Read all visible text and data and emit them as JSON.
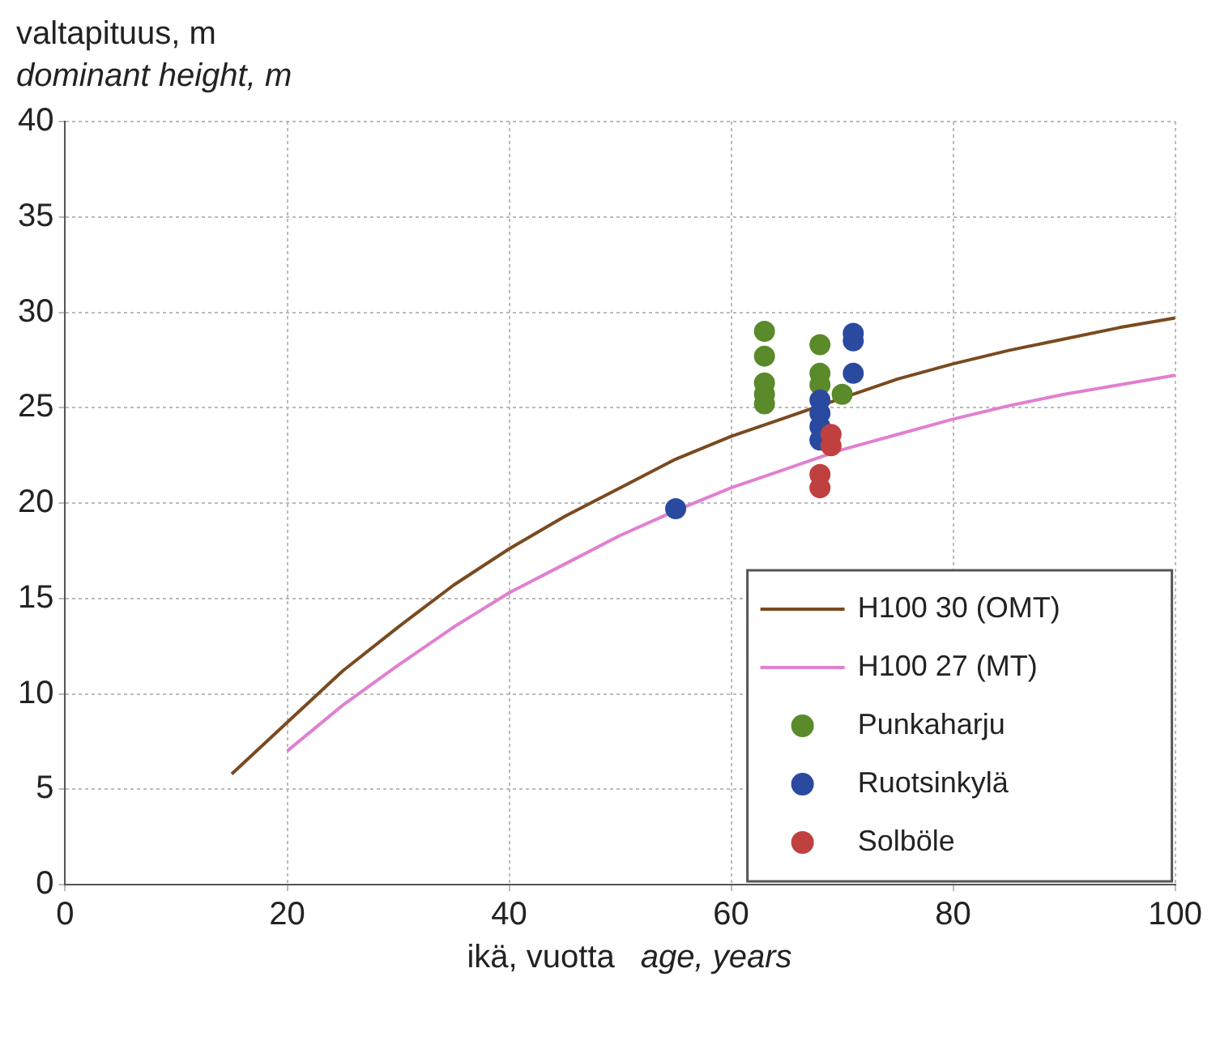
{
  "chart_data": {
    "type": "scatter",
    "xlabel": "ikä, vuotta\nage, years",
    "ylabel": "valtapituus, m\ndominant height, m",
    "xlim": [
      0,
      100
    ],
    "xticks": [
      0,
      20,
      40,
      60,
      80,
      100
    ],
    "ylim": [
      0,
      40
    ],
    "yticks": [
      0,
      5,
      10,
      15,
      20,
      25,
      30,
      35,
      40
    ],
    "grid": true,
    "legend": "bottom right",
    "marker": "circle",
    "series": [
      {
        "name": "H100 30 (OMT)",
        "type": "line",
        "color": "#7a4a1f",
        "marker": "none",
        "x": [
          15,
          20,
          25,
          30,
          35,
          40,
          45,
          50,
          55,
          60,
          65,
          70,
          75,
          80,
          85,
          90,
          95,
          100
        ],
        "values": [
          5.8,
          8.5,
          11.2,
          13.5,
          15.7,
          17.6,
          19.3,
          20.8,
          22.3,
          23.5,
          24.5,
          25.5,
          26.5,
          27.3,
          28.0,
          28.6,
          29.2,
          29.7
        ]
      },
      {
        "name": "H100 27 (MT)",
        "type": "line",
        "color": "#e080d0",
        "marker": "none",
        "x": [
          20,
          25,
          30,
          35,
          40,
          45,
          50,
          55,
          60,
          65,
          70,
          75,
          80,
          85,
          90,
          95,
          100
        ],
        "values": [
          7.0,
          9.4,
          11.5,
          13.5,
          15.3,
          16.8,
          18.3,
          19.6,
          20.8,
          21.8,
          22.8,
          23.6,
          24.4,
          25.1,
          25.7,
          26.2,
          26.7
        ]
      },
      {
        "name": "Punkaharju",
        "type": "scatter",
        "color": "#5a8a2a",
        "x": [
          63,
          63,
          63,
          63,
          63,
          68,
          68,
          68,
          70
        ],
        "values": [
          29.0,
          27.7,
          26.3,
          25.7,
          25.2,
          28.3,
          26.8,
          26.2,
          25.7
        ]
      },
      {
        "name": "Ruotsinkylä",
        "type": "scatter",
        "color": "#2a4aa0",
        "x": [
          71,
          71,
          71,
          55,
          68,
          68,
          68,
          68
        ],
        "values": [
          28.9,
          28.5,
          26.8,
          19.7,
          25.4,
          24.7,
          24.0,
          23.3
        ]
      },
      {
        "name": "Solböle",
        "type": "scatter",
        "color": "#c04040",
        "x": [
          69,
          69,
          68,
          68
        ],
        "values": [
          23.6,
          23.0,
          21.5,
          20.8
        ]
      }
    ]
  }
}
